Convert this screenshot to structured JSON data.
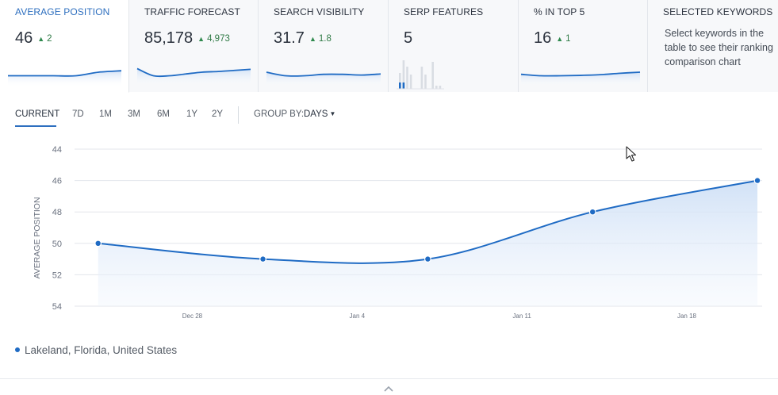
{
  "cards": [
    {
      "title": "AVERAGE POSITION",
      "value": "46",
      "delta": "2",
      "spark": [
        50,
        50,
        50,
        50,
        49,
        48.6
      ]
    },
    {
      "title": "TRAFFIC FORECAST",
      "value": "85,178",
      "delta": "4,973",
      "spark": [
        48,
        50,
        50,
        49.5,
        49,
        48.8,
        48.5,
        48.2
      ]
    },
    {
      "title": "SEARCH VISIBILITY",
      "value": "31.7",
      "delta": "1.8",
      "spark": [
        49,
        50,
        50,
        49.6,
        49.6,
        49.8,
        49.5
      ]
    },
    {
      "title": "SERP FEATURES",
      "value": "5",
      "bars": [
        {
          "a": 20,
          "b": 8
        },
        {
          "a": 36,
          "b": 8
        },
        {
          "a": 28,
          "b": 0
        },
        {
          "a": 18,
          "b": 0
        },
        {
          "a": 0,
          "b": 0
        },
        {
          "a": 0,
          "b": 0
        },
        {
          "a": 28,
          "b": 0
        },
        {
          "a": 18,
          "b": 0
        },
        {
          "a": 0,
          "b": 0
        },
        {
          "a": 34,
          "b": 0
        },
        {
          "a": 4,
          "b": 0
        },
        {
          "a": 4,
          "b": 0
        }
      ]
    },
    {
      "title": "% IN TOP 5",
      "value": "16",
      "delta": "1",
      "spark": [
        49.6,
        50,
        50,
        49.9,
        49.7,
        49.3,
        49
      ]
    },
    {
      "title": "SELECTED KEYWORDS",
      "text": "Select keywords in the table to see their ranking comparison chart"
    }
  ],
  "toolbar": {
    "periods": [
      "CURRENT",
      "7D",
      "1M",
      "3M",
      "6M",
      "1Y",
      "2Y"
    ],
    "group_by_label": "GROUP BY:",
    "group_by_value": "DAYS"
  },
  "legend": {
    "label": "Lakeland, Florida, United States"
  },
  "colors": {
    "accent": "#2e6fbf",
    "series": "#1f6bc4",
    "fill": "#dde9f8",
    "positive": "#2f7a45"
  },
  "icons": {
    "delta": "triangle-up-icon",
    "dropdown": "chevron-down-icon",
    "collapse": "chevron-up-icon",
    "pointer": "mouse-pointer-icon"
  },
  "chart_data": {
    "type": "area",
    "ylabel": "AVERAGE POSITION",
    "y_ticks": [
      "44",
      "46",
      "48",
      "50",
      "52",
      "54"
    ],
    "ylim": [
      44,
      54
    ],
    "y_inverted": true,
    "x_tick_labels": [
      "Dec 28",
      "Jan 4",
      "Jan 11",
      "Jan 18"
    ],
    "series": [
      {
        "name": "Lakeland, Florida, United States",
        "points": [
          {
            "x": "Dec 24",
            "y": 50
          },
          {
            "x": "Dec 31",
            "y": 51
          },
          {
            "x": "Jan 7",
            "y": 51
          },
          {
            "x": "Jan 14",
            "y": 48
          },
          {
            "x": "Jan 21",
            "y": 46
          }
        ]
      }
    ],
    "grid": true
  }
}
